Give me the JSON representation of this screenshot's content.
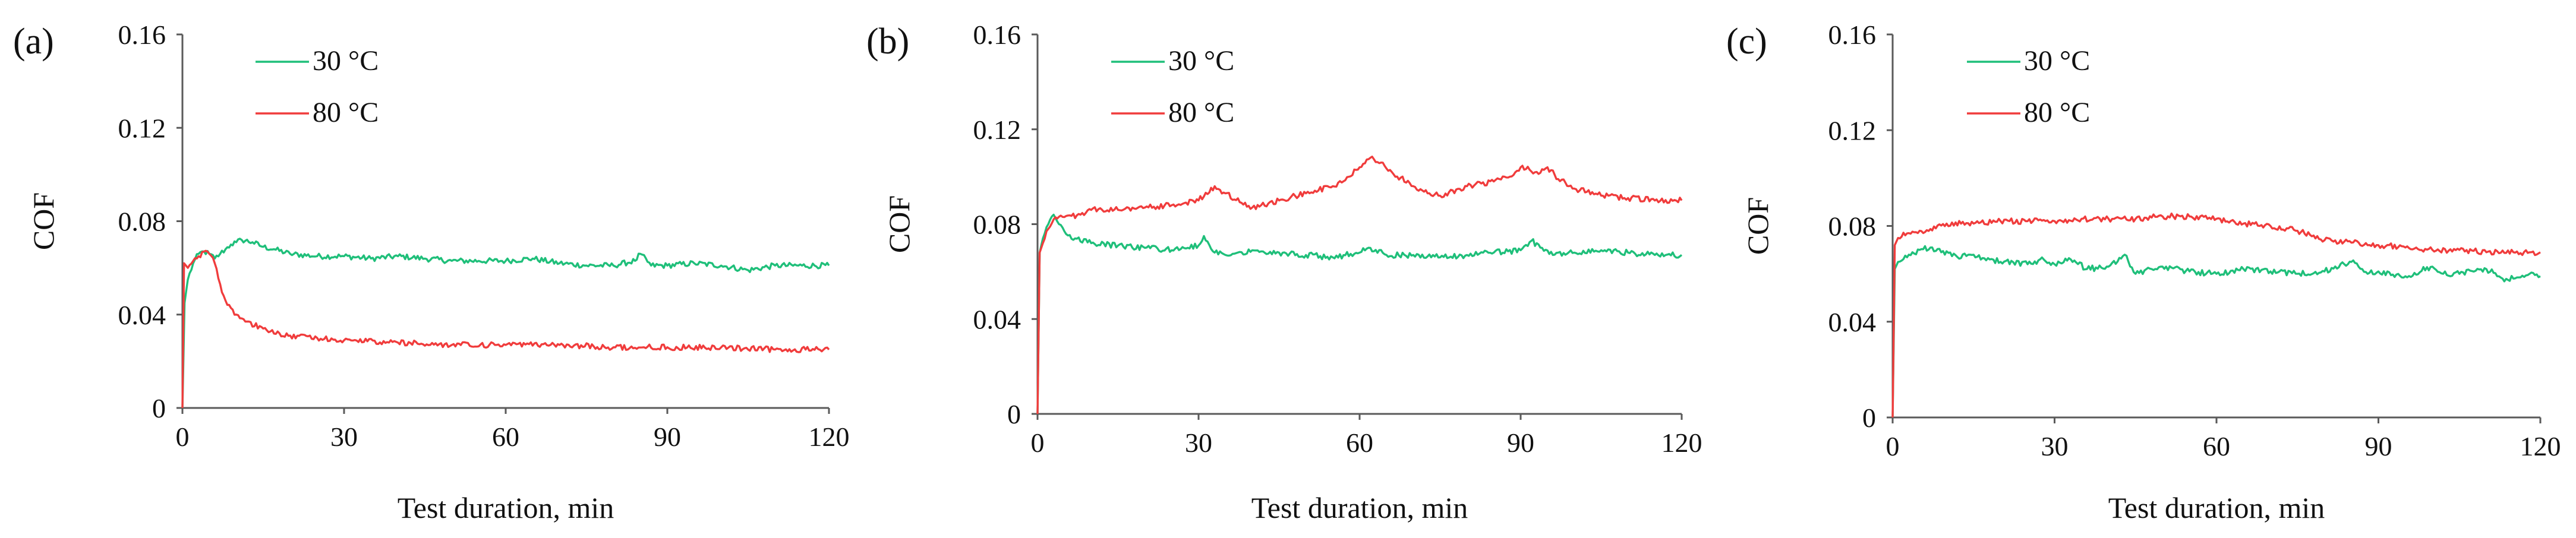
{
  "chart_data": [
    {
      "panel": "(a)",
      "type": "line",
      "xlabel": "Test duration, min",
      "ylabel": "COF",
      "xlim": [
        0,
        120
      ],
      "ylim": [
        0,
        0.16
      ],
      "xticks": [
        "0",
        "30",
        "60",
        "90",
        "120"
      ],
      "yticks": [
        "0",
        "0.04",
        "0.08",
        "0.12",
        "0.16"
      ],
      "grid": false,
      "legend": "top-left",
      "series": [
        {
          "name": "30 °C",
          "color": "#1fbf7a",
          "points": [
            [
              0,
              0.0
            ],
            [
              0.4,
              0.045
            ],
            [
              1,
              0.055
            ],
            [
              2,
              0.062
            ],
            [
              3,
              0.066
            ],
            [
              4,
              0.067
            ],
            [
              5,
              0.066
            ],
            [
              6,
              0.064
            ],
            [
              7,
              0.066
            ],
            [
              8,
              0.068
            ],
            [
              9,
              0.07
            ],
            [
              10,
              0.071
            ],
            [
              11,
              0.072
            ],
            [
              13,
              0.071
            ],
            [
              15,
              0.069
            ],
            [
              17,
              0.068
            ],
            [
              20,
              0.066
            ],
            [
              25,
              0.065
            ],
            [
              30,
              0.065
            ],
            [
              35,
              0.064
            ],
            [
              40,
              0.065
            ],
            [
              45,
              0.064
            ],
            [
              50,
              0.063
            ],
            [
              55,
              0.063
            ],
            [
              60,
              0.063
            ],
            [
              65,
              0.064
            ],
            [
              70,
              0.062
            ],
            [
              75,
              0.061
            ],
            [
              80,
              0.061
            ],
            [
              84,
              0.063
            ],
            [
              85,
              0.066
            ],
            [
              87,
              0.061
            ],
            [
              90,
              0.061
            ],
            [
              95,
              0.062
            ],
            [
              100,
              0.061
            ],
            [
              105,
              0.059
            ],
            [
              110,
              0.061
            ],
            [
              115,
              0.061
            ],
            [
              120,
              0.061
            ]
          ]
        },
        {
          "name": "80 °C",
          "color": "#f03c3c",
          "points": [
            [
              0,
              0.0
            ],
            [
              0.3,
              0.062
            ],
            [
              1,
              0.06
            ],
            [
              2,
              0.063
            ],
            [
              3,
              0.065
            ],
            [
              4,
              0.067
            ],
            [
              5,
              0.066
            ],
            [
              6,
              0.062
            ],
            [
              7,
              0.053
            ],
            [
              8,
              0.046
            ],
            [
              10,
              0.04
            ],
            [
              12,
              0.037
            ],
            [
              15,
              0.034
            ],
            [
              18,
              0.032
            ],
            [
              20,
              0.031
            ],
            [
              25,
              0.03
            ],
            [
              30,
              0.029
            ],
            [
              40,
              0.028
            ],
            [
              50,
              0.027
            ],
            [
              60,
              0.027
            ],
            [
              70,
              0.027
            ],
            [
              80,
              0.026
            ],
            [
              90,
              0.026
            ],
            [
              100,
              0.026
            ],
            [
              110,
              0.025
            ],
            [
              120,
              0.025
            ]
          ]
        }
      ]
    },
    {
      "panel": "(b)",
      "type": "line",
      "xlabel": "Test duration, min",
      "ylabel": "COF",
      "xlim": [
        0,
        120
      ],
      "ylim": [
        0,
        0.16
      ],
      "xticks": [
        "0",
        "30",
        "60",
        "90",
        "120"
      ],
      "yticks": [
        "0",
        "0.04",
        "0.08",
        "0.12",
        "0.16"
      ],
      "grid": false,
      "legend": "top-left",
      "series": [
        {
          "name": "30 °C",
          "color": "#1fbf7a",
          "points": [
            [
              0,
              0.0
            ],
            [
              0.4,
              0.068
            ],
            [
              1,
              0.074
            ],
            [
              2,
              0.08
            ],
            [
              3,
              0.084
            ],
            [
              4,
              0.08
            ],
            [
              5,
              0.077
            ],
            [
              7,
              0.074
            ],
            [
              10,
              0.072
            ],
            [
              15,
              0.071
            ],
            [
              20,
              0.07
            ],
            [
              25,
              0.069
            ],
            [
              28,
              0.07
            ],
            [
              30,
              0.071
            ],
            [
              31,
              0.075
            ],
            [
              33,
              0.068
            ],
            [
              35,
              0.067
            ],
            [
              40,
              0.069
            ],
            [
              45,
              0.068
            ],
            [
              50,
              0.067
            ],
            [
              55,
              0.066
            ],
            [
              60,
              0.068
            ],
            [
              62,
              0.07
            ],
            [
              65,
              0.067
            ],
            [
              70,
              0.067
            ],
            [
              75,
              0.066
            ],
            [
              80,
              0.067
            ],
            [
              85,
              0.068
            ],
            [
              90,
              0.069
            ],
            [
              92,
              0.073
            ],
            [
              94,
              0.07
            ],
            [
              96,
              0.067
            ],
            [
              100,
              0.068
            ],
            [
              105,
              0.069
            ],
            [
              110,
              0.068
            ],
            [
              115,
              0.067
            ],
            [
              120,
              0.067
            ]
          ]
        },
        {
          "name": "80 °C",
          "color": "#f03c3c",
          "points": [
            [
              0,
              0.0
            ],
            [
              0.4,
              0.068
            ],
            [
              1,
              0.072
            ],
            [
              2,
              0.078
            ],
            [
              3,
              0.082
            ],
            [
              5,
              0.083
            ],
            [
              8,
              0.084
            ],
            [
              10,
              0.086
            ],
            [
              15,
              0.086
            ],
            [
              20,
              0.087
            ],
            [
              25,
              0.088
            ],
            [
              30,
              0.09
            ],
            [
              33,
              0.096
            ],
            [
              35,
              0.093
            ],
            [
              38,
              0.089
            ],
            [
              40,
              0.087
            ],
            [
              45,
              0.09
            ],
            [
              50,
              0.093
            ],
            [
              55,
              0.096
            ],
            [
              58,
              0.1
            ],
            [
              60,
              0.104
            ],
            [
              62,
              0.108
            ],
            [
              64,
              0.106
            ],
            [
              66,
              0.102
            ],
            [
              70,
              0.096
            ],
            [
              73,
              0.093
            ],
            [
              75,
              0.092
            ],
            [
              80,
              0.096
            ],
            [
              85,
              0.098
            ],
            [
              88,
              0.1
            ],
            [
              90,
              0.104
            ],
            [
              93,
              0.102
            ],
            [
              95,
              0.104
            ],
            [
              97,
              0.099
            ],
            [
              100,
              0.095
            ],
            [
              105,
              0.092
            ],
            [
              110,
              0.091
            ],
            [
              115,
              0.09
            ],
            [
              120,
              0.09
            ]
          ]
        }
      ]
    },
    {
      "panel": "(c)",
      "type": "line",
      "xlabel": "Test duration, min",
      "ylabel": "COF",
      "xlim": [
        0,
        120
      ],
      "ylim": [
        0,
        0.16
      ],
      "xticks": [
        "0",
        "30",
        "60",
        "90",
        "120"
      ],
      "yticks": [
        "0",
        "0.04",
        "0.08",
        "0.12",
        "0.16"
      ],
      "grid": false,
      "legend": "top-left",
      "series": [
        {
          "name": "30 °C",
          "color": "#1fbf7a",
          "points": [
            [
              0,
              0.0
            ],
            [
              0.4,
              0.062
            ],
            [
              1,
              0.065
            ],
            [
              3,
              0.068
            ],
            [
              5,
              0.07
            ],
            [
              7,
              0.071
            ],
            [
              9,
              0.069
            ],
            [
              12,
              0.067
            ],
            [
              15,
              0.068
            ],
            [
              18,
              0.066
            ],
            [
              20,
              0.065
            ],
            [
              25,
              0.064
            ],
            [
              28,
              0.066
            ],
            [
              30,
              0.064
            ],
            [
              33,
              0.066
            ],
            [
              36,
              0.062
            ],
            [
              40,
              0.063
            ],
            [
              43,
              0.068
            ],
            [
              45,
              0.06
            ],
            [
              48,
              0.062
            ],
            [
              50,
              0.063
            ],
            [
              55,
              0.061
            ],
            [
              60,
              0.06
            ],
            [
              65,
              0.062
            ],
            [
              70,
              0.061
            ],
            [
              75,
              0.06
            ],
            [
              80,
              0.061
            ],
            [
              85,
              0.065
            ],
            [
              88,
              0.06
            ],
            [
              90,
              0.061
            ],
            [
              95,
              0.059
            ],
            [
              100,
              0.063
            ],
            [
              102,
              0.06
            ],
            [
              105,
              0.06
            ],
            [
              110,
              0.062
            ],
            [
              113,
              0.058
            ],
            [
              115,
              0.058
            ],
            [
              118,
              0.06
            ],
            [
              120,
              0.059
            ]
          ]
        },
        {
          "name": "80 °C",
          "color": "#f03c3c",
          "points": [
            [
              0,
              0.0
            ],
            [
              0.4,
              0.072
            ],
            [
              1,
              0.075
            ],
            [
              3,
              0.077
            ],
            [
              5,
              0.078
            ],
            [
              8,
              0.079
            ],
            [
              10,
              0.081
            ],
            [
              15,
              0.081
            ],
            [
              20,
              0.082
            ],
            [
              25,
              0.082
            ],
            [
              30,
              0.082
            ],
            [
              35,
              0.083
            ],
            [
              40,
              0.083
            ],
            [
              45,
              0.083
            ],
            [
              50,
              0.084
            ],
            [
              55,
              0.084
            ],
            [
              60,
              0.083
            ],
            [
              65,
              0.081
            ],
            [
              70,
              0.08
            ],
            [
              75,
              0.078
            ],
            [
              78,
              0.076
            ],
            [
              80,
              0.074
            ],
            [
              85,
              0.073
            ],
            [
              90,
              0.072
            ],
            [
              95,
              0.071
            ],
            [
              100,
              0.07
            ],
            [
              105,
              0.07
            ],
            [
              110,
              0.069
            ],
            [
              115,
              0.069
            ],
            [
              120,
              0.069
            ]
          ]
        }
      ]
    }
  ]
}
